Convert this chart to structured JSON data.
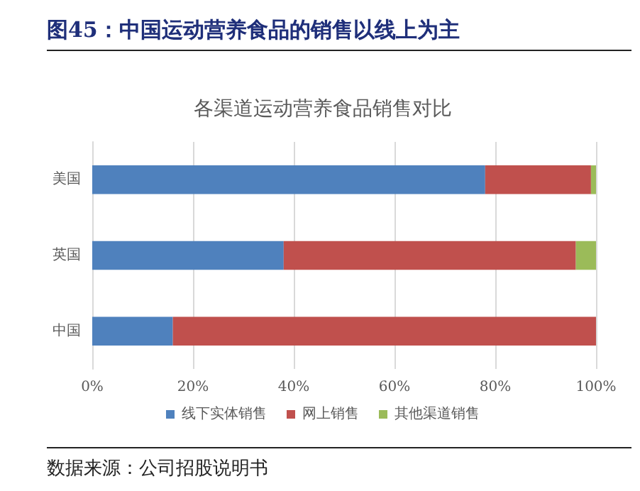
{
  "chart_data": {
    "type": "bar",
    "orientation": "horizontal",
    "stacked": true,
    "title": "图45：中国运动营养食品的销售以线上为主",
    "subtitle": "各渠道运动营养食品销售对比",
    "annotations": [
      "数据来源：公司招股说明书"
    ],
    "categories": [
      "美国",
      "英国",
      "中国"
    ],
    "series": [
      {
        "name": "线下实体销售",
        "color": "#4f81bd",
        "values": [
          78,
          38,
          16
        ]
      },
      {
        "name": "网上销售",
        "color": "#c0504d",
        "values": [
          21,
          58,
          84
        ]
      },
      {
        "name": "其他渠道销售",
        "color": "#9bbb59",
        "values": [
          1,
          4,
          0
        ]
      }
    ],
    "xlim": [
      0,
      100
    ],
    "xticks": [
      {
        "value": 0,
        "label": "0%"
      },
      {
        "value": 20,
        "label": "20%"
      },
      {
        "value": 40,
        "label": "40%"
      },
      {
        "value": 60,
        "label": "60%"
      },
      {
        "value": 80,
        "label": "80%"
      },
      {
        "value": 100,
        "label": "100%"
      }
    ],
    "grid": "x",
    "legend": "bottom"
  }
}
